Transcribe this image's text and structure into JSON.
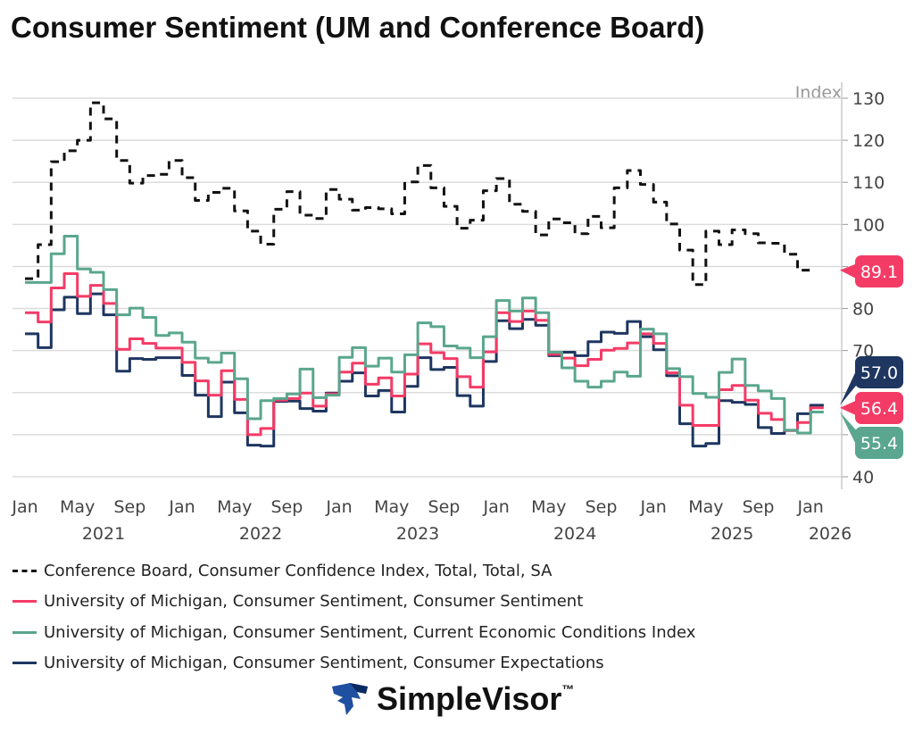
{
  "title": "Consumer Sentiment (UM and Conference Board)",
  "chart_data": {
    "type": "line",
    "step": true,
    "title": "Consumer Sentiment (UM and Conference Board)",
    "ylabel": "Index",
    "ylim": [
      40,
      130
    ],
    "yticks": [
      40,
      50,
      60,
      70,
      80,
      90,
      100,
      110,
      120,
      130
    ],
    "y_axis_side": "right",
    "grid": true,
    "x_start": "2021-01",
    "x_end": "2026-01",
    "x_tick_labels": [
      "Jan",
      "May",
      "Sep",
      "Jan",
      "May",
      "Sep",
      "Jan",
      "May",
      "Sep",
      "Jan",
      "May",
      "Sep",
      "Jan",
      "May",
      "Sep",
      "Jan"
    ],
    "x_year_labels": [
      "2021",
      "2022",
      "2023",
      "2024",
      "2025",
      "2026"
    ],
    "legend_position": "bottom",
    "series": [
      {
        "name": "Conference Board, Consumer Confidence Index, Total, Total, SA",
        "color": "#111111",
        "dash": true,
        "last_label": "89.1",
        "label_color": "#f43b66",
        "values": [
          87.1,
          95.2,
          114.9,
          117.5,
          120.0,
          128.9,
          125.1,
          115.2,
          109.8,
          111.6,
          111.9,
          115.2,
          111.1,
          105.7,
          107.6,
          108.6,
          103.2,
          98.4,
          95.3,
          103.6,
          107.8,
          102.2,
          101.4,
          108.3,
          106.0,
          103.4,
          104.0,
          103.7,
          102.5,
          110.1,
          114.0,
          108.7,
          104.3,
          99.1,
          101.0,
          108.0,
          110.9,
          104.8,
          103.1,
          97.5,
          101.3,
          100.4,
          97.8,
          101.9,
          99.2,
          108.7,
          112.8,
          109.5,
          105.3,
          100.1,
          93.9,
          85.7,
          98.4,
          95.2,
          98.7,
          97.8,
          95.6,
          95.5,
          92.9,
          89.1
        ]
      },
      {
        "name": "University of Michigan, Consumer Sentiment, Consumer Sentiment",
        "color": "#f43b66",
        "last_label": "56.4",
        "label_color": "#f43b66",
        "values": [
          79.0,
          76.8,
          84.9,
          88.3,
          82.9,
          85.5,
          81.2,
          70.3,
          72.8,
          71.7,
          70.6,
          70.6,
          67.2,
          62.8,
          59.4,
          65.2,
          58.4,
          50.0,
          51.5,
          58.2,
          58.6,
          59.9,
          56.8,
          59.7,
          64.9,
          67.0,
          62.0,
          63.5,
          59.2,
          64.4,
          71.6,
          69.5,
          68.1,
          63.8,
          61.3,
          69.7,
          79.0,
          76.9,
          79.4,
          77.2,
          69.1,
          68.2,
          66.4,
          67.9,
          70.1,
          70.5,
          71.8,
          74.0,
          71.7,
          64.7,
          57.0,
          52.2,
          52.2,
          60.7,
          61.7,
          58.2,
          55.1,
          53.6,
          51.0,
          52.9,
          56.4
        ]
      },
      {
        "name": "University of Michigan, Consumer Sentiment, Current Economic Conditions Index",
        "color": "#5aa68e",
        "last_label": "55.4",
        "label_color": "#5aa68e",
        "values": [
          86.2,
          86.2,
          93.0,
          97.2,
          89.4,
          88.6,
          84.5,
          78.5,
          80.1,
          77.9,
          73.6,
          74.2,
          72.0,
          68.2,
          67.2,
          69.4,
          63.3,
          53.8,
          58.1,
          58.6,
          59.7,
          65.6,
          58.8,
          59.4,
          68.4,
          70.7,
          66.3,
          68.2,
          64.9,
          69.0,
          76.6,
          75.7,
          71.1,
          70.6,
          68.3,
          73.3,
          81.9,
          79.4,
          82.5,
          79.0,
          69.6,
          65.9,
          62.7,
          61.3,
          62.7,
          64.9,
          63.9,
          75.1,
          74.0,
          65.7,
          63.8,
          59.8,
          58.9,
          64.8,
          68.0,
          61.7,
          60.4,
          58.6,
          51.1,
          50.4,
          55.4
        ]
      },
      {
        "name": "University of Michigan, Consumer Sentiment, Consumer Expectations",
        "color": "#1e3660",
        "last_label": "57.0",
        "label_color": "#1e3660",
        "values": [
          74.0,
          70.7,
          79.7,
          82.7,
          78.8,
          83.5,
          78.5,
          65.1,
          68.1,
          67.9,
          68.3,
          68.3,
          64.1,
          59.4,
          54.3,
          62.5,
          55.2,
          47.5,
          47.3,
          57.9,
          58.0,
          56.2,
          55.6,
          59.9,
          62.7,
          64.7,
          59.2,
          60.5,
          55.4,
          61.5,
          68.3,
          65.5,
          66.0,
          59.3,
          56.8,
          67.4,
          77.1,
          75.2,
          77.4,
          76.0,
          68.8,
          69.6,
          68.8,
          72.1,
          74.4,
          74.1,
          76.9,
          73.3,
          70.2,
          64.0,
          52.6,
          47.3,
          47.9,
          58.1,
          57.7,
          57.2,
          51.7,
          50.3,
          51.0,
          55.0,
          57.0
        ]
      }
    ]
  },
  "logo": {
    "text": "SimpleVisor",
    "tm": "™"
  }
}
